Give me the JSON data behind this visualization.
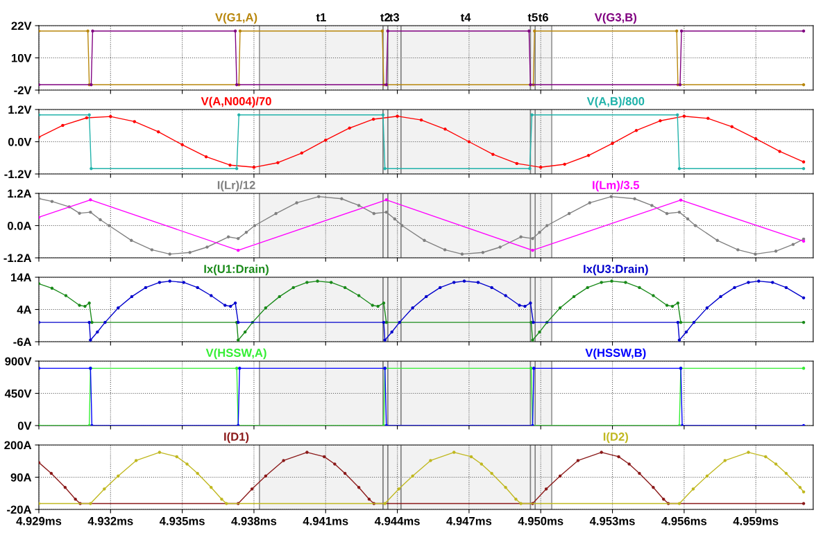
{
  "chart_data": [
    {
      "type": "line",
      "xlim": [
        4.929,
        4.9614
      ],
      "ylim": [
        -2,
        22
      ],
      "grid": true,
      "tick_labels": "y",
      "marker": "circle",
      "xticks": [
        {
          "value": 4.929,
          "label": null
        },
        {
          "value": 4.932,
          "label": null
        },
        {
          "value": 4.935,
          "label": null
        },
        {
          "value": 4.938,
          "label": null
        },
        {
          "value": 4.941,
          "label": null
        },
        {
          "value": 4.944,
          "label": null
        },
        {
          "value": 4.947,
          "label": null
        },
        {
          "value": 4.95,
          "label": null
        },
        {
          "value": 4.953,
          "label": null
        },
        {
          "value": 4.956,
          "label": null
        },
        {
          "value": 4.959,
          "label": null
        }
      ],
      "yticks": [
        {
          "value": 22,
          "label": "22V"
        },
        {
          "value": 10,
          "label": "10V"
        },
        {
          "value": -2,
          "label": "-2V"
        }
      ],
      "series": [
        {
          "name": "V(G1,A)",
          "color": "#b8860b",
          "x": [
            4.929,
            4.93105,
            4.93111,
            4.93737,
            4.93742,
            4.94337,
            4.94343,
            4.94969,
            4.94974,
            4.95569,
            4.95574,
            4.961
          ],
          "values": [
            20,
            20,
            0,
            0,
            20,
            20,
            0,
            0,
            20,
            20,
            0,
            0
          ]
        },
        {
          "name": "V(G3,B)",
          "color": "#800080",
          "x": [
            4.929,
            4.93119,
            4.93125,
            4.93722,
            4.93728,
            4.94354,
            4.9436,
            4.94951,
            4.94957,
            4.95583,
            4.95589,
            4.961
          ],
          "values": [
            0,
            0,
            20,
            20,
            0,
            0,
            20,
            20,
            0,
            0,
            20,
            20
          ]
        }
      ],
      "bands": [
        {
          "axis": "x",
          "from": 4.93823,
          "to": 4.9434,
          "label": "t1"
        },
        {
          "axis": "x",
          "from": 4.9434,
          "to": 4.9436,
          "label": "t2"
        },
        {
          "axis": "x",
          "from": 4.9436,
          "to": 4.94415,
          "label": "t3"
        },
        {
          "axis": "x",
          "from": 4.94415,
          "to": 4.94957,
          "label": "t4"
        },
        {
          "axis": "x",
          "from": 4.94957,
          "to": 4.94977,
          "label": "t5"
        },
        {
          "axis": "x",
          "from": 4.94977,
          "to": 4.95046,
          "label": "t6"
        }
      ]
    },
    {
      "type": "line",
      "xlim": [
        4.929,
        4.9614
      ],
      "ylim": [
        -1.2,
        1.2
      ],
      "grid": true,
      "tick_labels": "y",
      "marker": "circle",
      "xticks": [
        {
          "value": 4.929,
          "label": null
        },
        {
          "value": 4.932,
          "label": null
        },
        {
          "value": 4.935,
          "label": null
        },
        {
          "value": 4.938,
          "label": null
        },
        {
          "value": 4.941,
          "label": null
        },
        {
          "value": 4.944,
          "label": null
        },
        {
          "value": 4.947,
          "label": null
        },
        {
          "value": 4.95,
          "label": null
        },
        {
          "value": 4.953,
          "label": null
        },
        {
          "value": 4.956,
          "label": null
        },
        {
          "value": 4.959,
          "label": null
        }
      ],
      "yticks": [
        {
          "value": 1.2,
          "label": "1.2V"
        },
        {
          "value": 0,
          "label": "0.0V"
        },
        {
          "value": -1.2,
          "label": "-1.2V"
        }
      ],
      "series": [
        {
          "name": "V(A,N004)/70",
          "color": "#ff0000",
          "x": [
            4.929,
            4.93,
            4.931,
            4.932,
            4.933,
            4.934,
            4.935,
            4.936,
            4.937,
            4.938,
            4.939,
            4.94,
            4.941,
            4.942,
            4.943,
            4.944,
            4.945,
            4.946,
            4.947,
            4.948,
            4.949,
            4.95,
            4.951,
            4.952,
            4.953,
            4.954,
            4.955,
            4.956,
            4.957,
            4.958,
            4.959,
            4.96,
            4.961
          ],
          "values": [
            0.17,
            0.61,
            0.89,
            0.94,
            0.75,
            0.37,
            -0.11,
            -0.56,
            -0.87,
            -0.95,
            -0.78,
            -0.42,
            0.06,
            0.51,
            0.84,
            0.95,
            0.81,
            0.47,
            0.0,
            -0.47,
            -0.81,
            -0.95,
            -0.84,
            -0.51,
            -0.06,
            0.42,
            0.78,
            0.95,
            0.87,
            0.56,
            0.11,
            -0.36,
            -0.75
          ]
        },
        {
          "name": "V(A,B)/800",
          "color": "#20b2aa",
          "x": [
            4.929,
            4.93111,
            4.93119,
            4.93728,
            4.93737,
            4.9434,
            4.94348,
            4.94954,
            4.94963,
            4.95572,
            4.9558,
            4.961
          ],
          "values": [
            1,
            1,
            -1,
            -1,
            1,
            1,
            -1,
            -1,
            1,
            1,
            -1,
            -1
          ]
        }
      ],
      "bands": [
        {
          "axis": "x",
          "from": 4.93823,
          "to": 4.9434
        },
        {
          "axis": "x",
          "from": 4.9434,
          "to": 4.9436
        },
        {
          "axis": "x",
          "from": 4.9436,
          "to": 4.94415
        },
        {
          "axis": "x",
          "from": 4.94415,
          "to": 4.94957
        },
        {
          "axis": "x",
          "from": 4.94957,
          "to": 4.94977
        },
        {
          "axis": "x",
          "from": 4.94977,
          "to": 4.95046
        }
      ]
    },
    {
      "type": "line",
      "xlim": [
        4.929,
        4.9614
      ],
      "ylim": [
        -1.2,
        1.2
      ],
      "grid": true,
      "tick_labels": "y",
      "marker": "circle",
      "xticks": [
        {
          "value": 4.929,
          "label": null
        },
        {
          "value": 4.932,
          "label": null
        },
        {
          "value": 4.935,
          "label": null
        },
        {
          "value": 4.938,
          "label": null
        },
        {
          "value": 4.941,
          "label": null
        },
        {
          "value": 4.944,
          "label": null
        },
        {
          "value": 4.947,
          "label": null
        },
        {
          "value": 4.95,
          "label": null
        },
        {
          "value": 4.953,
          "label": null
        },
        {
          "value": 4.956,
          "label": null
        },
        {
          "value": 4.959,
          "label": null
        }
      ],
      "yticks": [
        {
          "value": 1.2,
          "label": "1.2A"
        },
        {
          "value": 0,
          "label": "0.0A"
        },
        {
          "value": -1.2,
          "label": "-1.2A"
        }
      ],
      "series": [
        {
          "name": "I(Lr)/12",
          "color": "#808080",
          "x": [
            4.929,
            4.92955,
            4.93027,
            4.9307,
            4.93116,
            4.93157,
            4.93194,
            4.93287,
            4.93373,
            4.93448,
            4.93532,
            4.93604,
            4.93693,
            4.93734,
            4.93768,
            4.93803,
            4.93892,
            4.93979,
            4.94071,
            4.94167,
            4.94239,
            4.94302,
            4.94354,
            4.94389,
            4.9442,
            4.94513,
            4.94599,
            4.94671,
            4.94758,
            4.9483,
            4.94917,
            4.94966,
            4.94995,
            4.95026,
            4.95119,
            4.95205,
            4.95295,
            4.95393,
            4.95465,
            4.95528,
            4.9558,
            4.95615,
            4.95647,
            4.95739,
            4.95825,
            4.95898,
            4.95984,
            4.96056,
            4.961
          ],
          "values": [
            1.01,
            0.9,
            0.7,
            0.46,
            0.5,
            0.22,
            0.0,
            -0.55,
            -0.9,
            -1.06,
            -1.0,
            -0.8,
            -0.42,
            -0.48,
            -0.25,
            0.0,
            0.45,
            0.85,
            1.08,
            1.0,
            0.75,
            0.45,
            0.5,
            0.25,
            0.0,
            -0.55,
            -0.9,
            -1.06,
            -1.0,
            -0.8,
            -0.42,
            -0.48,
            -0.25,
            0.0,
            0.45,
            0.85,
            1.08,
            1.0,
            0.75,
            0.45,
            0.5,
            0.25,
            0.0,
            -0.55,
            -0.9,
            -1.06,
            -0.95,
            -0.7,
            -0.5
          ]
        },
        {
          "name": "I(Lm)/3.5",
          "color": "#ff00ff",
          "x": [
            4.929,
            4.93116,
            4.93734,
            4.94354,
            4.94966,
            4.95586,
            4.961
          ],
          "values": [
            0.31,
            0.96,
            -0.92,
            0.96,
            -0.92,
            0.95,
            -0.58
          ]
        }
      ],
      "bands": [
        {
          "axis": "x",
          "from": 4.93823,
          "to": 4.9434
        },
        {
          "axis": "x",
          "from": 4.9434,
          "to": 4.9436
        },
        {
          "axis": "x",
          "from": 4.9436,
          "to": 4.94415
        },
        {
          "axis": "x",
          "from": 4.94415,
          "to": 4.94957
        },
        {
          "axis": "x",
          "from": 4.94957,
          "to": 4.94977
        },
        {
          "axis": "x",
          "from": 4.94977,
          "to": 4.95046
        }
      ]
    },
    {
      "type": "line",
      "xlim": [
        4.929,
        4.9614
      ],
      "ylim": [
        -6,
        14
      ],
      "grid": true,
      "tick_labels": "y",
      "marker": "circle",
      "xticks": [
        {
          "value": 4.929,
          "label": null
        },
        {
          "value": 4.932,
          "label": null
        },
        {
          "value": 4.935,
          "label": null
        },
        {
          "value": 4.938,
          "label": null
        },
        {
          "value": 4.941,
          "label": null
        },
        {
          "value": 4.944,
          "label": null
        },
        {
          "value": 4.947,
          "label": null
        },
        {
          "value": 4.95,
          "label": null
        },
        {
          "value": 4.953,
          "label": null
        },
        {
          "value": 4.956,
          "label": null
        },
        {
          "value": 4.959,
          "label": null
        }
      ],
      "yticks": [
        {
          "value": 14,
          "label": "14A"
        },
        {
          "value": 4,
          "label": "4A"
        },
        {
          "value": -6,
          "label": "-6A"
        }
      ],
      "series": [
        {
          "name": "Ix(U1:Drain)",
          "color": "#1a8a1a",
          "x": [
            4.929,
            4.92955,
            4.93013,
            4.9307,
            4.93093,
            4.93111,
            4.93122,
            4.93728,
            4.93734,
            4.93763,
            4.93794,
            4.93849,
            4.93907,
            4.93965,
            4.94022,
            4.94066,
            4.94123,
            4.94181,
            4.94239,
            4.94296,
            4.94319,
            4.94343,
            4.94354,
            4.9496,
            4.94966,
            4.94995,
            4.95026,
            4.95081,
            4.95139,
            4.95196,
            4.95254,
            4.95297,
            4.95355,
            4.95413,
            4.95471,
            4.95528,
            4.95551,
            4.95574,
            4.95586,
            4.961
          ],
          "values": [
            12.0,
            10.6,
            8.3,
            5.3,
            5.0,
            6.0,
            0,
            0,
            -5.5,
            -3.0,
            0,
            4.5,
            8.0,
            10.8,
            12.4,
            12.8,
            12.4,
            10.8,
            8.3,
            5.3,
            5.0,
            6.0,
            0,
            0,
            -5.5,
            -3.0,
            0,
            4.5,
            8.0,
            10.8,
            12.4,
            12.8,
            12.4,
            10.8,
            8.3,
            5.3,
            5.0,
            6.0,
            0,
            0
          ]
        },
        {
          "name": "Ix(U3:Drain)",
          "color": "#0000cc",
          "x": [
            4.929,
            4.93111,
            4.93116,
            4.93145,
            4.93177,
            4.93232,
            4.93289,
            4.93347,
            4.93405,
            4.93448,
            4.93506,
            4.93564,
            4.93621,
            4.93679,
            4.93702,
            4.93722,
            4.93734,
            4.94343,
            4.94348,
            4.94377,
            4.94409,
            4.94464,
            4.94521,
            4.94579,
            4.94637,
            4.9468,
            4.94738,
            4.94795,
            4.94853,
            4.94911,
            4.94934,
            4.94957,
            4.94969,
            4.95574,
            4.9558,
            4.95609,
            4.95641,
            4.95696,
            4.95753,
            4.95811,
            4.95869,
            4.95912,
            4.9597,
            4.96027,
            4.961
          ],
          "values": [
            0,
            0,
            -5.5,
            -3.0,
            0,
            4.5,
            8.0,
            10.8,
            12.4,
            12.8,
            12.4,
            10.8,
            8.3,
            5.3,
            5.0,
            6.0,
            0,
            0,
            -5.5,
            -3.0,
            0,
            4.5,
            8.0,
            10.8,
            12.4,
            12.8,
            12.4,
            10.8,
            8.3,
            5.3,
            5.0,
            6.0,
            0,
            0,
            -5.5,
            -3.0,
            0,
            4.5,
            8.0,
            10.8,
            12.4,
            12.8,
            12.4,
            10.8,
            7.6
          ]
        }
      ],
      "bands": [
        {
          "axis": "x",
          "from": 4.93823,
          "to": 4.9434
        },
        {
          "axis": "x",
          "from": 4.9434,
          "to": 4.9436
        },
        {
          "axis": "x",
          "from": 4.9436,
          "to": 4.94415
        },
        {
          "axis": "x",
          "from": 4.94415,
          "to": 4.94957
        },
        {
          "axis": "x",
          "from": 4.94957,
          "to": 4.94977
        },
        {
          "axis": "x",
          "from": 4.94977,
          "to": 4.95046
        }
      ]
    },
    {
      "type": "line",
      "xlim": [
        4.929,
        4.9614
      ],
      "ylim": [
        0,
        900
      ],
      "grid": true,
      "tick_labels": "y",
      "marker": "circle",
      "xticks": [
        {
          "value": 4.929,
          "label": null
        },
        {
          "value": 4.932,
          "label": null
        },
        {
          "value": 4.935,
          "label": null
        },
        {
          "value": 4.938,
          "label": null
        },
        {
          "value": 4.941,
          "label": null
        },
        {
          "value": 4.944,
          "label": null
        },
        {
          "value": 4.947,
          "label": null
        },
        {
          "value": 4.95,
          "label": null
        },
        {
          "value": 4.953,
          "label": null
        },
        {
          "value": 4.956,
          "label": null
        },
        {
          "value": 4.959,
          "label": null
        }
      ],
      "yticks": [
        {
          "value": 900,
          "label": "900V"
        },
        {
          "value": 450,
          "label": "450V"
        },
        {
          "value": 0,
          "label": "0V"
        }
      ],
      "series": [
        {
          "name": "V(HSSW,A)",
          "color": "#33ee33",
          "x": [
            4.929,
            4.93111,
            4.93116,
            4.93728,
            4.93734,
            4.94343,
            4.94348,
            4.9496,
            4.94966,
            4.9558,
            4.95586,
            4.961
          ],
          "values": [
            0,
            0,
            800,
            800,
            0,
            0,
            800,
            800,
            0,
            0,
            800,
            800
          ]
        },
        {
          "name": "V(HSSW,B)",
          "color": "#0000ff",
          "x": [
            4.929,
            4.93116,
            4.93122,
            4.93734,
            4.9374,
            4.94348,
            4.94354,
            4.94966,
            4.94971,
            4.95586,
            4.95592,
            4.961
          ],
          "values": [
            800,
            800,
            0,
            0,
            800,
            800,
            0,
            0,
            800,
            800,
            0,
            0
          ]
        }
      ],
      "bands": [
        {
          "axis": "x",
          "from": 4.93823,
          "to": 4.9434
        },
        {
          "axis": "x",
          "from": 4.9434,
          "to": 4.9436
        },
        {
          "axis": "x",
          "from": 4.9436,
          "to": 4.94415
        },
        {
          "axis": "x",
          "from": 4.94415,
          "to": 4.94957
        },
        {
          "axis": "x",
          "from": 4.94957,
          "to": 4.94977
        },
        {
          "axis": "x",
          "from": 4.94977,
          "to": 4.95046
        }
      ]
    },
    {
      "type": "line",
      "xlim": [
        4.929,
        4.9614
      ],
      "ylim": [
        -20,
        200
      ],
      "grid": true,
      "marker": "circle",
      "xticks": [
        {
          "value": 4.929,
          "label": "4.929ms"
        },
        {
          "value": 4.932,
          "label": "4.932ms"
        },
        {
          "value": 4.935,
          "label": "4.935ms"
        },
        {
          "value": 4.938,
          "label": "4.938ms"
        },
        {
          "value": 4.941,
          "label": "4.941ms"
        },
        {
          "value": 4.944,
          "label": "4.944ms"
        },
        {
          "value": 4.947,
          "label": "4.947ms"
        },
        {
          "value": 4.95,
          "label": "4.950ms"
        },
        {
          "value": 4.953,
          "label": "4.953ms"
        },
        {
          "value": 4.956,
          "label": "4.956ms"
        },
        {
          "value": 4.959,
          "label": "4.959ms"
        }
      ],
      "yticks": [
        {
          "value": 200,
          "label": "200A"
        },
        {
          "value": 90,
          "label": "90A"
        },
        {
          "value": -20,
          "label": "-20A"
        }
      ],
      "series": [
        {
          "name": "I(D1)",
          "color": "#8b1a1a",
          "x": [
            4.929,
            4.92952,
            4.9301,
            4.93053,
            4.93073,
            4.93734,
            4.93792,
            4.93849,
            4.93924,
            4.94022,
            4.94094,
            4.94138,
            4.94181,
            4.94239,
            4.94282,
            4.94302,
            4.94966,
            4.95023,
            4.95081,
            4.95156,
            4.95254,
            4.95326,
            4.9537,
            4.95413,
            4.95471,
            4.95514,
            4.95534,
            4.961
          ],
          "values": [
            140,
            103,
            55,
            15,
            0,
            0,
            50,
            94,
            147,
            175,
            160,
            135,
            103,
            55,
            15,
            0,
            0,
            50,
            94,
            147,
            175,
            160,
            135,
            103,
            55,
            15,
            0,
            0
          ]
        },
        {
          "name": "I(D2)",
          "color": "#c0b820",
          "x": [
            4.929,
            4.93116,
            4.93174,
            4.93232,
            4.93307,
            4.93405,
            4.93477,
            4.9352,
            4.93564,
            4.93621,
            4.93665,
            4.93685,
            4.94348,
            4.94406,
            4.94464,
            4.94539,
            4.94637,
            4.94709,
            4.94752,
            4.94795,
            4.94853,
            4.94896,
            4.94917,
            4.9558,
            4.95638,
            4.95696,
            4.95771,
            4.95869,
            4.95941,
            4.95984,
            4.96027,
            4.96085,
            4.961
          ],
          "values": [
            0,
            0,
            50,
            94,
            147,
            175,
            160,
            135,
            103,
            55,
            15,
            0,
            0,
            50,
            94,
            147,
            175,
            160,
            135,
            103,
            55,
            15,
            0,
            0,
            50,
            94,
            147,
            175,
            160,
            135,
            103,
            55,
            40
          ]
        }
      ],
      "bands": [
        {
          "axis": "x",
          "from": 4.93823,
          "to": 4.9434
        },
        {
          "axis": "x",
          "from": 4.9434,
          "to": 4.9436
        },
        {
          "axis": "x",
          "from": 4.9436,
          "to": 4.94415
        },
        {
          "axis": "x",
          "from": 4.94415,
          "to": 4.94957
        },
        {
          "axis": "x",
          "from": 4.94957,
          "to": 4.94977
        },
        {
          "axis": "x",
          "from": 4.94977,
          "to": 4.95046
        }
      ]
    }
  ]
}
